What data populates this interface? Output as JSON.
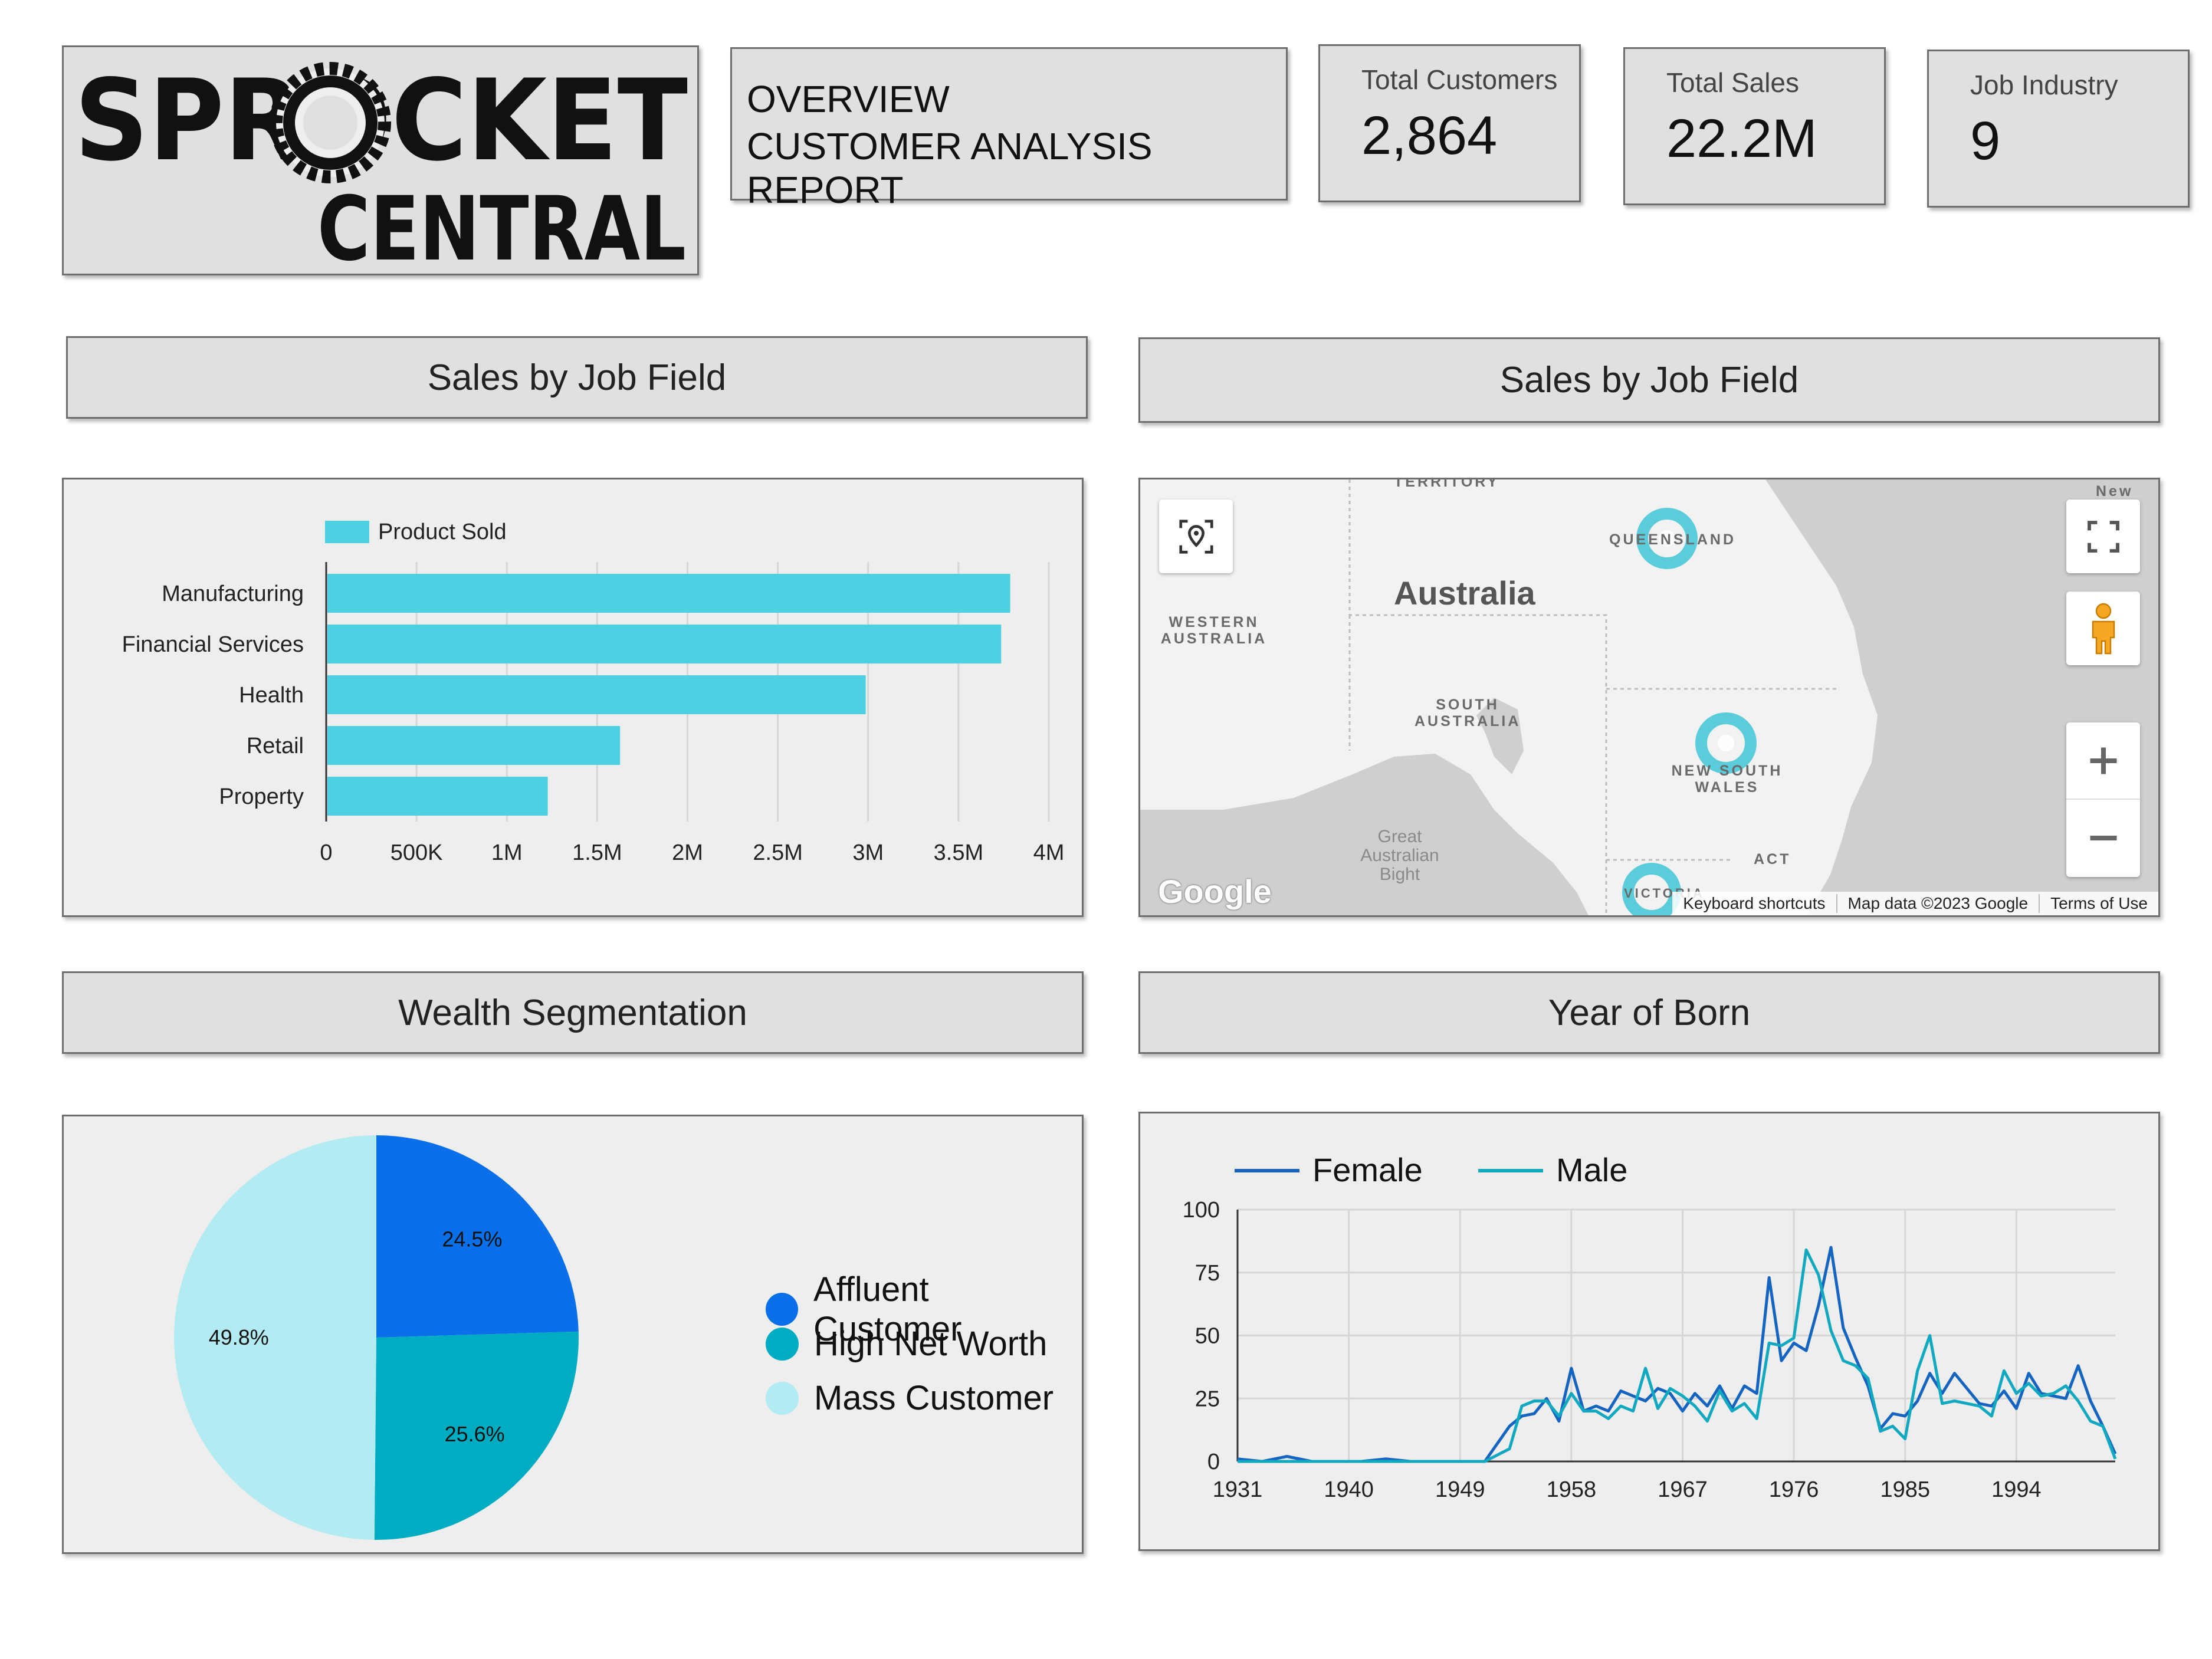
{
  "header": {
    "logo_text_line1": "SPROCKET",
    "logo_text_line2": "CENTRAL",
    "report_line1": "OVERVIEW",
    "report_line2": "CUSTOMER ANALYSIS REPORT"
  },
  "kpis": [
    {
      "label": "Total Customers",
      "value": "2,864"
    },
    {
      "label": "Total Sales",
      "value": "22.2M"
    },
    {
      "label": "Job Industry",
      "value": "9"
    }
  ],
  "sections": {
    "sales_job_field_left": "Sales by Job Field",
    "sales_job_field_right": "Sales by Job Field",
    "wealth_segmentation": "Wealth Segmentation",
    "year_of_born": "Year of Born"
  },
  "map": {
    "labels": [
      "TERRITORY",
      "QUEENSLAND",
      "Australia",
      "WESTERN AUSTRALIA",
      "SOUTH AUSTRALIA",
      "NEW SOUTH WALES",
      "Great Australian Bight",
      "ACT",
      "VICTORIA",
      "New"
    ],
    "footer": {
      "shortcuts": "Keyboard shortcuts",
      "data": "Map data ©2023 Google",
      "terms": "Terms of Use"
    },
    "google_logo": "Google",
    "colors": {
      "land": "#f2f2f2",
      "water": "#cfcfcf",
      "heat": "#3fc6d6"
    },
    "icons": [
      "locate-icon",
      "fullscreen-icon",
      "pegman-icon",
      "zoom-in-icon",
      "zoom-out-icon"
    ]
  },
  "pie_legend": [
    "Affluent Customer",
    "High Net Worth",
    "Mass Customer"
  ],
  "chart_data": [
    {
      "type": "bar",
      "orientation": "horizontal",
      "categories": [
        "Manufacturing",
        "Financial Services",
        "Health",
        "Retail",
        "Property"
      ],
      "series": [
        {
          "name": "Product Sold",
          "values": [
            3780000,
            3730000,
            2980000,
            1620000,
            1220000
          ]
        }
      ],
      "xlim": [
        0,
        4000000
      ],
      "xticks": [
        "0",
        "500K",
        "1M",
        "1.5M",
        "2M",
        "2.5M",
        "3M",
        "3.5M",
        "4M"
      ],
      "grid": true,
      "legend": "top-left",
      "color": "#4dd0e1"
    },
    {
      "type": "pie",
      "labels": [
        "Affluent Customer",
        "High Net Worth",
        "Mass Customer"
      ],
      "values": [
        24.5,
        25.6,
        49.8
      ],
      "data_labels": [
        "24.5%",
        "25.6%",
        "49.8%"
      ],
      "colors": [
        "#0a6fe8",
        "#00acc1",
        "#b2ebf2"
      ],
      "legend": "right"
    },
    {
      "type": "line",
      "x": [
        1931,
        1933,
        1935,
        1937,
        1939,
        1941,
        1943,
        1945,
        1947,
        1949,
        1951,
        1953,
        1954,
        1955,
        1956,
        1957,
        1958,
        1959,
        1960,
        1961,
        1962,
        1963,
        1964,
        1965,
        1966,
        1967,
        1968,
        1969,
        1970,
        1971,
        1972,
        1973,
        1974,
        1975,
        1976,
        1977,
        1978,
        1979,
        1980,
        1981,
        1982,
        1983,
        1984,
        1985,
        1986,
        1987,
        1988,
        1989,
        1990,
        1991,
        1992,
        1993,
        1994,
        1995,
        1996,
        1997,
        1998,
        1999,
        2000,
        2001,
        2002
      ],
      "series": [
        {
          "name": "Female",
          "color": "#1565c0",
          "values": [
            1,
            0,
            2,
            0,
            0,
            0,
            1,
            0,
            0,
            0,
            0,
            14,
            18,
            19,
            25,
            16,
            37,
            20,
            22,
            20,
            28,
            26,
            24,
            29,
            27,
            20,
            27,
            22,
            30,
            21,
            30,
            27,
            73,
            40,
            47,
            44,
            62,
            85,
            53,
            41,
            30,
            13,
            19,
            18,
            24,
            35,
            27,
            35,
            29,
            23,
            22,
            28,
            21,
            35,
            27,
            26,
            25,
            38,
            24,
            14,
            3
          ]
        },
        {
          "name": "Male",
          "color": "#12a9c0",
          "values": [
            0,
            0,
            0,
            0,
            0,
            0,
            0,
            0,
            0,
            0,
            0,
            5,
            22,
            24,
            24,
            18,
            27,
            20,
            20,
            17,
            22,
            20,
            37,
            21,
            29,
            26,
            22,
            16,
            28,
            20,
            23,
            17,
            47,
            46,
            49,
            84,
            74,
            52,
            40,
            38,
            33,
            12,
            14,
            9,
            36,
            50,
            23,
            24,
            23,
            22,
            18,
            36,
            27,
            31,
            26,
            27,
            30,
            24,
            16,
            14,
            1
          ]
        }
      ],
      "xticks": [
        "1931",
        "1940",
        "1949",
        "1958",
        "1967",
        "1976",
        "1985",
        "1994"
      ],
      "yticks": [
        "0",
        "25",
        "50",
        "75",
        "100"
      ],
      "ylim": [
        0,
        100
      ],
      "xlim": [
        1931,
        2002
      ],
      "grid": true,
      "legend": "top-left"
    }
  ]
}
